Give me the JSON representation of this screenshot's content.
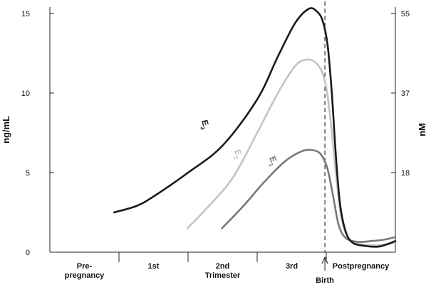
{
  "chart_data": {
    "type": "line",
    "title": "",
    "ylabel_left": "ng/mL",
    "ylabel_right": "nM",
    "ylim": [
      0,
      15.4
    ],
    "y_ticks_left": [
      "0",
      "5",
      "10",
      "15"
    ],
    "y_ticks_right": [
      {
        "label": "18",
        "value": 5
      },
      {
        "label": "37",
        "value": 10
      },
      {
        "label": "55",
        "value": 15
      }
    ],
    "x_phases": [
      {
        "label_lines": [
          "Pre-",
          "pregnancy"
        ],
        "start": 0.0,
        "end": 1.0
      },
      {
        "label_lines": [
          "1st"
        ],
        "start": 1.0,
        "end": 2.0
      },
      {
        "label_lines": [
          "2nd",
          "Trimester"
        ],
        "start": 2.0,
        "end": 3.0
      },
      {
        "label_lines": [
          "3rd"
        ],
        "start": 3.0,
        "end": 4.0
      },
      {
        "label_lines": [
          "Postpregnancy"
        ],
        "start": 4.0,
        "end": 5.0
      }
    ],
    "xlim": [
      0,
      5.0
    ],
    "birth": {
      "label": "Birth",
      "x": 3.98
    },
    "series": [
      {
        "name": "E3",
        "label_main": "E",
        "label_sub": "3",
        "color": "#1a1a1a",
        "width": 2.6,
        "points": [
          [
            0.93,
            2.5
          ],
          [
            1.25,
            2.9
          ],
          [
            1.5,
            3.5
          ],
          [
            2.0,
            5.0
          ],
          [
            2.5,
            6.7
          ],
          [
            3.0,
            9.6
          ],
          [
            3.3,
            12.3
          ],
          [
            3.55,
            14.4
          ],
          [
            3.75,
            15.3
          ],
          [
            3.87,
            15.1
          ],
          [
            3.95,
            14.5
          ],
          [
            4.02,
            13.0
          ],
          [
            4.08,
            10.0
          ],
          [
            4.14,
            6.0
          ],
          [
            4.2,
            3.0
          ],
          [
            4.28,
            1.3
          ],
          [
            4.38,
            0.6
          ],
          [
            4.55,
            0.4
          ],
          [
            4.75,
            0.35
          ],
          [
            4.88,
            0.5
          ],
          [
            5.0,
            0.7
          ]
        ]
      },
      {
        "name": "E2",
        "label_main": "E",
        "label_sub": "2",
        "color": "#c4c4c4",
        "width": 2.6,
        "points": [
          [
            1.99,
            1.5
          ],
          [
            2.3,
            2.9
          ],
          [
            2.65,
            4.7
          ],
          [
            3.0,
            7.5
          ],
          [
            3.3,
            10.0
          ],
          [
            3.55,
            11.7
          ],
          [
            3.72,
            12.1
          ],
          [
            3.85,
            11.9
          ],
          [
            3.95,
            11.2
          ],
          [
            4.02,
            9.8
          ],
          [
            4.08,
            7.5
          ],
          [
            4.15,
            4.5
          ],
          [
            4.22,
            2.1
          ],
          [
            4.32,
            0.9
          ],
          [
            4.45,
            0.55
          ],
          [
            4.6,
            0.45
          ],
          [
            4.8,
            0.45
          ],
          [
            5.0,
            0.6
          ]
        ]
      },
      {
        "name": "E1",
        "label_main": "E",
        "label_sub": "1",
        "color": "#787878",
        "width": 2.6,
        "points": [
          [
            2.49,
            1.5
          ],
          [
            2.8,
            2.9
          ],
          [
            3.1,
            4.4
          ],
          [
            3.4,
            5.7
          ],
          [
            3.65,
            6.35
          ],
          [
            3.82,
            6.4
          ],
          [
            3.93,
            6.1
          ],
          [
            4.02,
            5.2
          ],
          [
            4.1,
            3.5
          ],
          [
            4.18,
            1.7
          ],
          [
            4.28,
            0.9
          ],
          [
            4.45,
            0.65
          ],
          [
            4.65,
            0.7
          ],
          [
            4.85,
            0.8
          ],
          [
            5.0,
            0.95
          ]
        ]
      }
    ],
    "grid": false,
    "legend": "none"
  }
}
